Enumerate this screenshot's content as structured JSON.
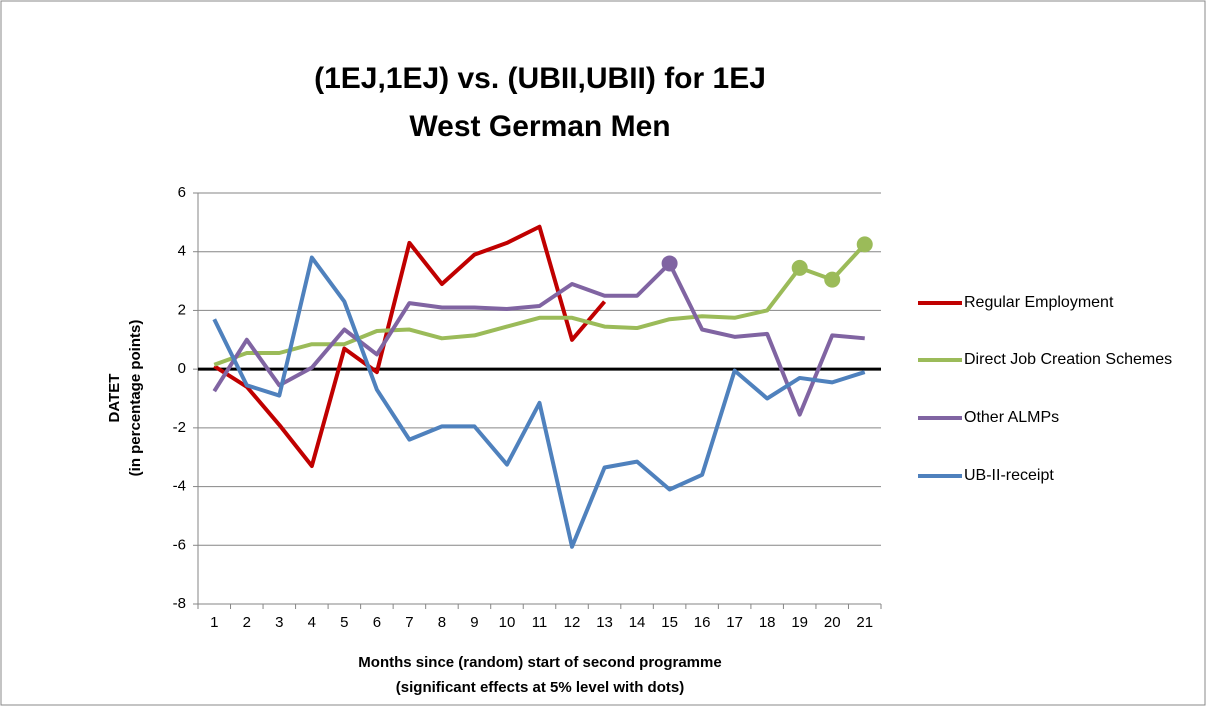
{
  "chart_data": {
    "type": "line",
    "title": [
      "(1EJ,1EJ) vs. (UBII,UBII) for 1EJ",
      "West German Men"
    ],
    "y_label": [
      "DATET",
      "(in percentage points)"
    ],
    "x_label": [
      "Months since (random) start of second programme",
      "(significant  effects at 5% level with dots)"
    ],
    "categories": [
      "1",
      "2",
      "3",
      "4",
      "5",
      "6",
      "7",
      "8",
      "9",
      "10",
      "11",
      "12",
      "13",
      "14",
      "15",
      "16",
      "17",
      "18",
      "19",
      "20",
      "21"
    ],
    "ylim": [
      -8,
      6
    ],
    "yticks": [
      -8,
      -6,
      -4,
      -2,
      0,
      2,
      4,
      6
    ],
    "grid": true,
    "legend": "right",
    "series": [
      {
        "name": "Regular Employment",
        "color": "#c00000",
        "values": [
          0.1,
          -0.6,
          -1.9,
          -3.3,
          0.7,
          -0.1,
          4.3,
          2.9,
          3.9,
          4.3,
          4.85,
          1.0,
          2.3,
          null,
          null,
          null,
          null,
          null,
          null,
          null,
          null
        ],
        "significant_points": []
      },
      {
        "name": "Direct Job Creation Schemes",
        "color": "#9bbb59",
        "values": [
          0.15,
          0.55,
          0.55,
          0.85,
          0.85,
          1.3,
          1.35,
          1.05,
          1.15,
          1.45,
          1.75,
          1.75,
          1.45,
          1.4,
          1.7,
          1.8,
          1.75,
          2.0,
          3.45,
          3.05,
          4.25
        ],
        "significant_points": [
          18,
          19,
          20
        ]
      },
      {
        "name": "Other ALMPs",
        "color": "#8064a2",
        "values": [
          -0.75,
          1.0,
          -0.55,
          0.05,
          1.35,
          0.5,
          2.25,
          2.1,
          2.1,
          2.05,
          2.15,
          2.9,
          2.5,
          2.5,
          3.6,
          1.35,
          1.1,
          1.2,
          -1.55,
          1.15,
          1.05
        ],
        "significant_points": [
          14
        ]
      },
      {
        "name": "UB-II-receipt",
        "color": "#4f81bd",
        "values": [
          1.7,
          -0.55,
          -0.9,
          3.8,
          2.3,
          -0.7,
          -2.4,
          -1.95,
          -1.95,
          -3.25,
          -1.15,
          -6.05,
          -3.35,
          -3.15,
          -4.1,
          -3.6,
          -0.05,
          -1.0,
          -0.3,
          -0.45,
          -0.1
        ],
        "significant_points": []
      }
    ]
  }
}
